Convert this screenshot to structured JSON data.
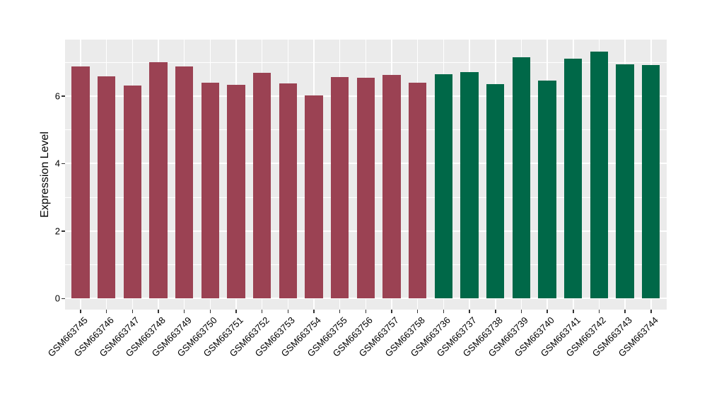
{
  "chart_data": {
    "type": "bar",
    "title": "",
    "xlabel": "",
    "ylabel": "Expression Level",
    "ylim": [
      0,
      7.7
    ],
    "yticks_major": [
      0,
      2,
      4,
      6
    ],
    "yticks_minor": [
      1,
      3,
      5,
      7
    ],
    "grid": "on",
    "legend": "none",
    "colors": {
      "panel_background": "#EBEBEB",
      "grid": "#FFFFFF",
      "tick_marks": "#333333",
      "axis_text": "#000000",
      "red_group": "#9B4253",
      "green_group": "#006848"
    },
    "series": [
      {
        "name": "red-group",
        "color": "#9B4253",
        "categories": [
          "GSM663745",
          "GSM663746",
          "GSM663747",
          "GSM663748",
          "GSM663749",
          "GSM663750",
          "GSM663751",
          "GSM663752",
          "GSM663753",
          "GSM663754",
          "GSM663755",
          "GSM663756",
          "GSM663757",
          "GSM663758"
        ],
        "values": [
          6.87,
          6.59,
          6.31,
          7.0,
          6.87,
          6.4,
          6.34,
          6.69,
          6.38,
          6.03,
          6.57,
          6.54,
          6.62,
          6.4
        ]
      },
      {
        "name": "green-group",
        "color": "#006848",
        "categories": [
          "GSM663736",
          "GSM663737",
          "GSM663738",
          "GSM663739",
          "GSM663740",
          "GSM663741",
          "GSM663742",
          "GSM663743",
          "GSM663744"
        ],
        "values": [
          6.64,
          6.71,
          6.36,
          7.15,
          6.46,
          7.1,
          7.31,
          6.94,
          6.92
        ]
      }
    ]
  }
}
